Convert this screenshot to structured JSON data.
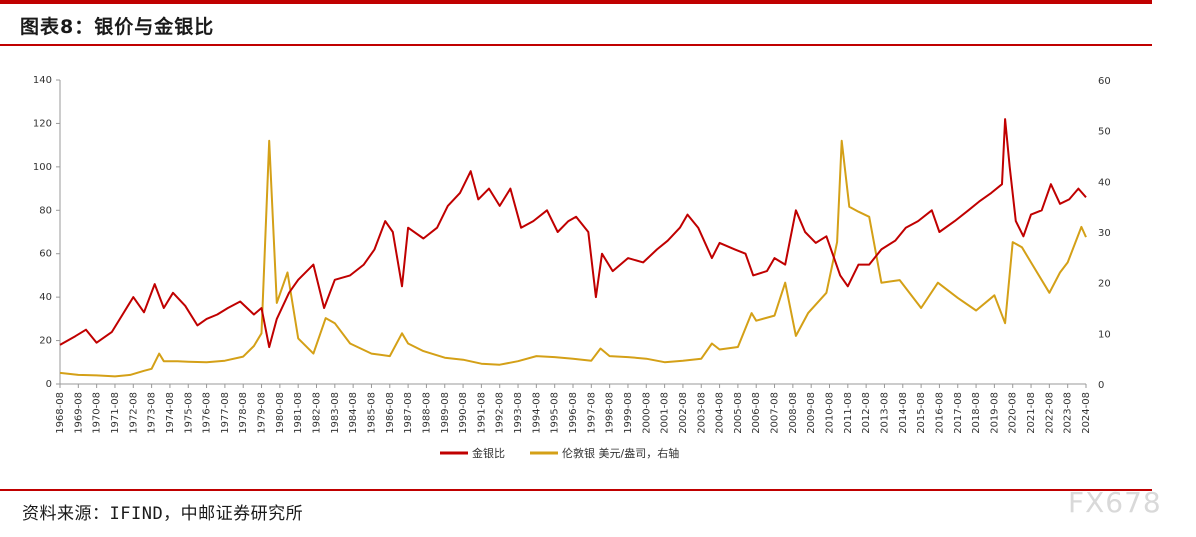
{
  "header": {
    "title": "图表8：银价与金银比"
  },
  "footer": {
    "source": "资料来源：IFIND，中邮证券研究所",
    "watermark": "FX678"
  },
  "colors": {
    "accent_red": "#c00000",
    "gold_silver_ratio": "#c00000",
    "silver_price": "#d4a017"
  },
  "chart_data": {
    "type": "line",
    "title": "",
    "xlabel": "",
    "ylabel": "",
    "ylim": [
      0,
      140
    ],
    "y2lim": [
      0,
      60
    ],
    "yticks": [
      0,
      20,
      40,
      60,
      80,
      100,
      120,
      140
    ],
    "y2ticks": [
      0,
      10,
      20,
      30,
      40,
      50,
      60
    ],
    "xlim": [
      "1968-08",
      "2024-08"
    ],
    "xticks": [
      "1968-08",
      "1969-08",
      "1970-08",
      "1971-08",
      "1972-08",
      "1973-08",
      "1974-08",
      "1975-08",
      "1976-08",
      "1977-08",
      "1978-08",
      "1979-08",
      "1980-08",
      "1981-08",
      "1982-08",
      "1983-08",
      "1984-08",
      "1985-08",
      "1986-08",
      "1987-08",
      "1988-08",
      "1989-08",
      "1990-08",
      "1991-08",
      "1992-08",
      "1993-08",
      "1994-08",
      "1995-08",
      "1996-08",
      "1997-08",
      "1998-08",
      "1999-08",
      "2000-08",
      "2001-08",
      "2002-08",
      "2003-08",
      "2004-08",
      "2005-08",
      "2006-08",
      "2007-08",
      "2008-08",
      "2009-08",
      "2010-08",
      "2011-08",
      "2012-08",
      "2013-08",
      "2014-08",
      "2015-08",
      "2016-08",
      "2017-08",
      "2018-08",
      "2019-08",
      "2020-08",
      "2021-08",
      "2022-08",
      "2023-08",
      "2024-08"
    ],
    "grid": false,
    "legend_position": "bottom-center",
    "series": [
      {
        "name": "金银比",
        "axis": "left",
        "color": "#c00000",
        "points": [
          [
            "1968-08",
            18
          ],
          [
            "1969-06",
            22
          ],
          [
            "1970-01",
            25
          ],
          [
            "1970-08",
            19
          ],
          [
            "1971-06",
            24
          ],
          [
            "1972-01",
            32
          ],
          [
            "1972-08",
            40
          ],
          [
            "1973-03",
            33
          ],
          [
            "1973-10",
            46
          ],
          [
            "1974-04",
            35
          ],
          [
            "1974-10",
            42
          ],
          [
            "1975-06",
            36
          ],
          [
            "1976-02",
            27
          ],
          [
            "1976-08",
            30
          ],
          [
            "1977-03",
            32
          ],
          [
            "1977-10",
            35
          ],
          [
            "1978-06",
            38
          ],
          [
            "1979-03",
            32
          ],
          [
            "1979-08",
            35
          ],
          [
            "1980-01",
            17
          ],
          [
            "1980-06",
            30
          ],
          [
            "1981-02",
            42
          ],
          [
            "1981-08",
            48
          ],
          [
            "1982-06",
            55
          ],
          [
            "1983-01",
            35
          ],
          [
            "1983-08",
            48
          ],
          [
            "1984-06",
            50
          ],
          [
            "1985-03",
            55
          ],
          [
            "1985-10",
            62
          ],
          [
            "1986-05",
            75
          ],
          [
            "1986-10",
            70
          ],
          [
            "1987-04",
            45
          ],
          [
            "1987-08",
            72
          ],
          [
            "1988-06",
            67
          ],
          [
            "1989-03",
            72
          ],
          [
            "1989-10",
            82
          ],
          [
            "1990-06",
            88
          ],
          [
            "1991-01",
            98
          ],
          [
            "1991-06",
            85
          ],
          [
            "1992-01",
            90
          ],
          [
            "1992-08",
            82
          ],
          [
            "1993-03",
            90
          ],
          [
            "1993-10",
            72
          ],
          [
            "1994-06",
            75
          ],
          [
            "1995-03",
            80
          ],
          [
            "1995-10",
            70
          ],
          [
            "1996-05",
            75
          ],
          [
            "1996-10",
            77
          ],
          [
            "1997-06",
            70
          ],
          [
            "1997-11",
            40
          ],
          [
            "1998-03",
            60
          ],
          [
            "1998-10",
            52
          ],
          [
            "1999-08",
            58
          ],
          [
            "2000-06",
            56
          ],
          [
            "2001-03",
            62
          ],
          [
            "2001-10",
            66
          ],
          [
            "2002-06",
            72
          ],
          [
            "2002-11",
            78
          ],
          [
            "2003-06",
            72
          ],
          [
            "2004-03",
            58
          ],
          [
            "2004-08",
            65
          ],
          [
            "2005-06",
            62
          ],
          [
            "2006-01",
            60
          ],
          [
            "2006-06",
            50
          ],
          [
            "2007-03",
            52
          ],
          [
            "2007-08",
            58
          ],
          [
            "2008-03",
            55
          ],
          [
            "2008-10",
            80
          ],
          [
            "2009-04",
            70
          ],
          [
            "2009-11",
            65
          ],
          [
            "2010-06",
            68
          ],
          [
            "2011-03",
            50
          ],
          [
            "2011-08",
            45
          ],
          [
            "2012-03",
            55
          ],
          [
            "2012-10",
            55
          ],
          [
            "2013-06",
            62
          ],
          [
            "2014-03",
            66
          ],
          [
            "2014-10",
            72
          ],
          [
            "2015-06",
            75
          ],
          [
            "2016-03",
            80
          ],
          [
            "2016-08",
            70
          ],
          [
            "2017-06",
            75
          ],
          [
            "2018-03",
            80
          ],
          [
            "2018-10",
            84
          ],
          [
            "2019-06",
            88
          ],
          [
            "2020-01",
            92
          ],
          [
            "2020-03",
            122
          ],
          [
            "2020-06",
            100
          ],
          [
            "2020-10",
            75
          ],
          [
            "2021-03",
            68
          ],
          [
            "2021-08",
            78
          ],
          [
            "2022-03",
            80
          ],
          [
            "2022-09",
            92
          ],
          [
            "2023-03",
            83
          ],
          [
            "2023-09",
            85
          ],
          [
            "2024-03",
            90
          ],
          [
            "2024-08",
            86
          ]
        ]
      },
      {
        "name": "伦敦银 美元/盎司，右轴",
        "axis": "right",
        "color": "#d4a017",
        "points": [
          [
            "1968-08",
            2.2
          ],
          [
            "1969-08",
            1.8
          ],
          [
            "1970-08",
            1.7
          ],
          [
            "1971-08",
            1.5
          ],
          [
            "1972-06",
            1.8
          ],
          [
            "1973-03",
            2.6
          ],
          [
            "1973-08",
            3.0
          ],
          [
            "1974-01",
            6.0
          ],
          [
            "1974-04",
            4.5
          ],
          [
            "1975-01",
            4.5
          ],
          [
            "1975-08",
            4.4
          ],
          [
            "1976-08",
            4.3
          ],
          [
            "1977-08",
            4.6
          ],
          [
            "1978-08",
            5.4
          ],
          [
            "1979-03",
            7.5
          ],
          [
            "1979-08",
            10.0
          ],
          [
            "1980-01",
            48.0
          ],
          [
            "1980-06",
            16.0
          ],
          [
            "1981-01",
            22.0
          ],
          [
            "1981-08",
            9.0
          ],
          [
            "1982-06",
            6.0
          ],
          [
            "1983-02",
            13.0
          ],
          [
            "1983-08",
            12.0
          ],
          [
            "1984-06",
            8.0
          ],
          [
            "1985-08",
            6.0
          ],
          [
            "1986-08",
            5.5
          ],
          [
            "1987-04",
            10.0
          ],
          [
            "1987-08",
            8.0
          ],
          [
            "1988-06",
            6.5
          ],
          [
            "1989-08",
            5.2
          ],
          [
            "1990-08",
            4.8
          ],
          [
            "1991-08",
            4.0
          ],
          [
            "1992-08",
            3.8
          ],
          [
            "1993-08",
            4.5
          ],
          [
            "1994-08",
            5.5
          ],
          [
            "1995-08",
            5.3
          ],
          [
            "1996-08",
            5.0
          ],
          [
            "1997-08",
            4.6
          ],
          [
            "1998-02",
            7.0
          ],
          [
            "1998-08",
            5.5
          ],
          [
            "1999-08",
            5.3
          ],
          [
            "2000-08",
            5.0
          ],
          [
            "2001-08",
            4.3
          ],
          [
            "2002-08",
            4.6
          ],
          [
            "2003-08",
            5.0
          ],
          [
            "2004-03",
            8.0
          ],
          [
            "2004-08",
            6.8
          ],
          [
            "2005-08",
            7.3
          ],
          [
            "2006-05",
            14.0
          ],
          [
            "2006-08",
            12.5
          ],
          [
            "2007-08",
            13.5
          ],
          [
            "2008-03",
            20.0
          ],
          [
            "2008-10",
            9.5
          ],
          [
            "2009-06",
            14.0
          ],
          [
            "2010-06",
            18.0
          ],
          [
            "2011-01",
            28.0
          ],
          [
            "2011-04",
            48.0
          ],
          [
            "2011-09",
            35.0
          ],
          [
            "2012-03",
            34.0
          ],
          [
            "2012-10",
            33.0
          ],
          [
            "2013-06",
            20.0
          ],
          [
            "2014-06",
            20.5
          ],
          [
            "2015-08",
            15.0
          ],
          [
            "2016-07",
            20.0
          ],
          [
            "2017-08",
            17.0
          ],
          [
            "2018-08",
            14.5
          ],
          [
            "2019-08",
            17.5
          ],
          [
            "2020-03",
            12.0
          ],
          [
            "2020-08",
            28.0
          ],
          [
            "2021-02",
            27.0
          ],
          [
            "2021-08",
            24.0
          ],
          [
            "2022-08",
            18.0
          ],
          [
            "2023-03",
            22.0
          ],
          [
            "2023-08",
            24.0
          ],
          [
            "2024-05",
            31.0
          ],
          [
            "2024-08",
            29.0
          ]
        ]
      }
    ]
  }
}
